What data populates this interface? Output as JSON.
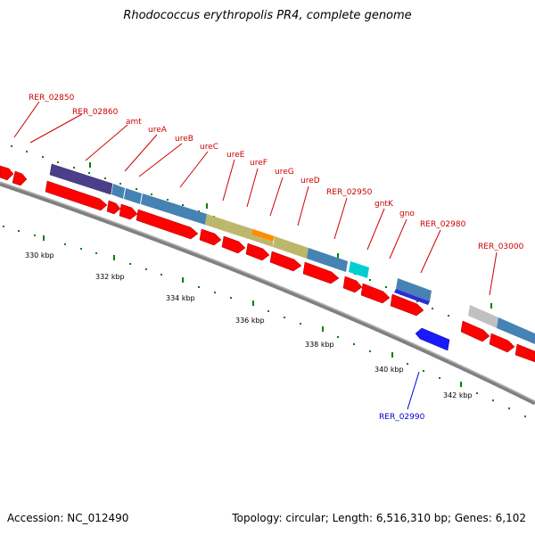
{
  "title": "Rhodococcus erythropolis PR4, complete genome",
  "footer": {
    "accession": "Accession: NC_012490",
    "summary": "Topology: circular; Length: 6,516,310 bp; Genes: 6,102"
  },
  "colors": {
    "backbone": "#808080",
    "forward_cds": "#ff0000",
    "reverse_cds": "#0000ff",
    "label_forward": "#cc0000",
    "label_reverse": "#0000cc",
    "tick": "#008000"
  },
  "position_ticks": [
    "330 kbp",
    "332 kbp",
    "334 kbp",
    "336 kbp",
    "338 kbp",
    "340 kbp",
    "342 kbp"
  ],
  "gene_labels": [
    {
      "name": "RER_02850",
      "strand": "forward"
    },
    {
      "name": "RER_02860",
      "strand": "forward"
    },
    {
      "name": "amt",
      "strand": "forward"
    },
    {
      "name": "ureA",
      "strand": "forward"
    },
    {
      "name": "ureB",
      "strand": "forward"
    },
    {
      "name": "ureC",
      "strand": "forward"
    },
    {
      "name": "ureE",
      "strand": "forward"
    },
    {
      "name": "ureF",
      "strand": "forward"
    },
    {
      "name": "ureG",
      "strand": "forward"
    },
    {
      "name": "ureD",
      "strand": "forward"
    },
    {
      "name": "RER_02950",
      "strand": "forward"
    },
    {
      "name": "gntK",
      "strand": "forward"
    },
    {
      "name": "gno",
      "strand": "forward"
    },
    {
      "name": "RER_02980",
      "strand": "forward"
    },
    {
      "name": "RER_03000",
      "strand": "forward"
    },
    {
      "name": "RER_02990",
      "strand": "reverse"
    }
  ],
  "feature_colors": [
    "#4b3f8c",
    "#4682b4",
    "#bdb76b",
    "#ff8c00",
    "#00ced1",
    "#c0c0c0",
    "#2b2bd6"
  ]
}
